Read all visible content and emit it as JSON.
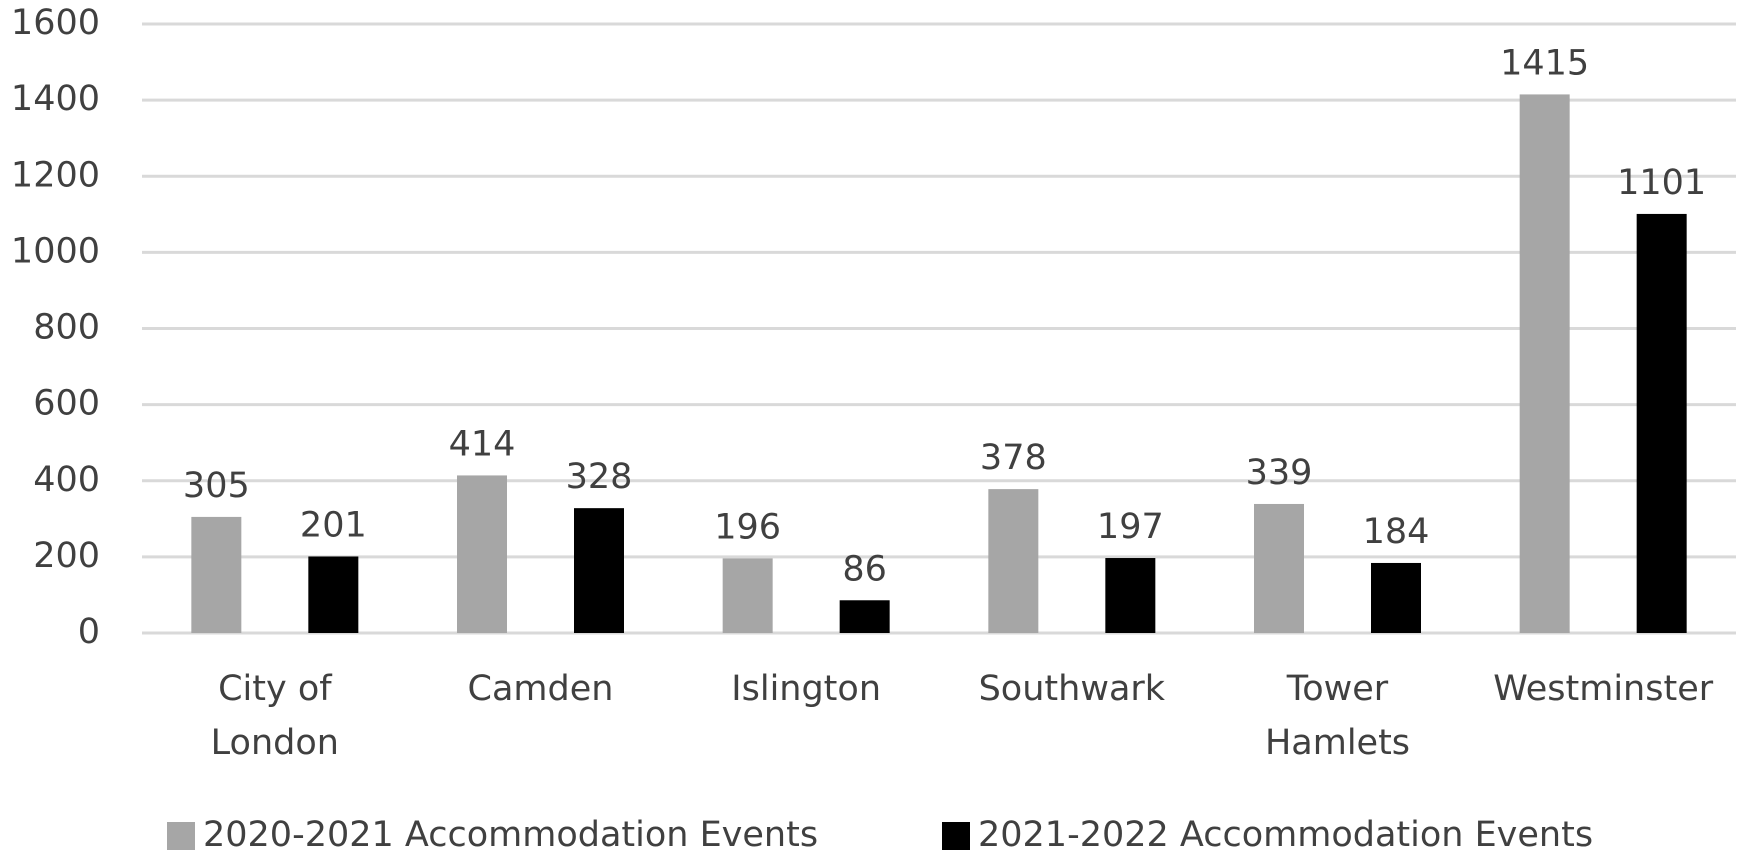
{
  "chart_data": {
    "type": "bar",
    "categories": [
      "City of London",
      "Camden",
      "Islington",
      "Southwark",
      "Tower Hamlets",
      "Westminster"
    ],
    "series": [
      {
        "name": "2020-2021 Accommodation Events",
        "color": "#a6a6a6",
        "values": [
          305,
          414,
          196,
          378,
          339,
          1415
        ]
      },
      {
        "name": "2021-2022 Accommodation Events",
        "color": "#000000",
        "values": [
          201,
          328,
          86,
          197,
          184,
          1101
        ]
      }
    ],
    "ylim": [
      0,
      1600
    ],
    "yticks": [
      0,
      200,
      400,
      600,
      800,
      1000,
      1200,
      1400,
      1600
    ],
    "grid": true,
    "legend": "bottom"
  }
}
